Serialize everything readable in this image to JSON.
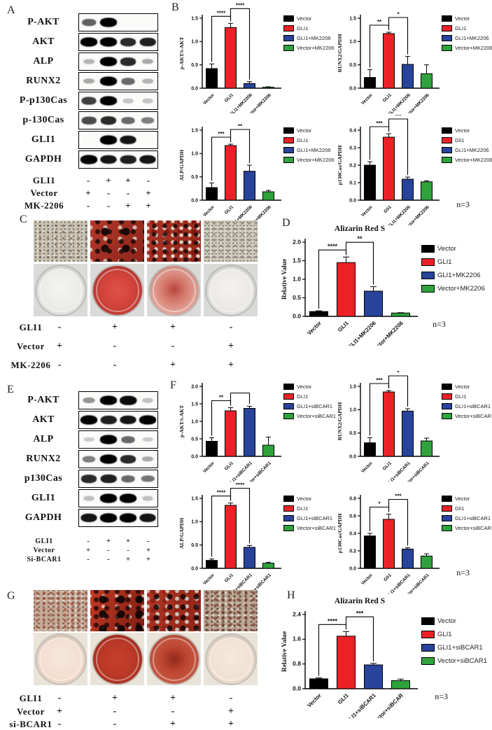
{
  "colors": {
    "bar_palette": [
      "#000000",
      "#EC2127",
      "#28439A",
      "#2FA23C"
    ],
    "axis": "#000000"
  },
  "panels": {
    "a": {
      "letter": "A",
      "blots": [
        {
          "label": "P-AKT",
          "bands": [
            0.55,
            1,
            0,
            0
          ]
        },
        {
          "label": "AKT",
          "bands": [
            1,
            1,
            0.8,
            0.85
          ]
        },
        {
          "label": "ALP",
          "bands": [
            0.15,
            1,
            0.8,
            0.2
          ]
        },
        {
          "label": "RUNX2",
          "bands": [
            0.2,
            1,
            0.5,
            0.15
          ]
        },
        {
          "label": "P-p130Cas",
          "bands": [
            0.7,
            1,
            0.08,
            0.08
          ]
        },
        {
          "label": "p-130Cas",
          "bands": [
            0.65,
            0.8,
            0.5,
            0.4
          ]
        },
        {
          "label": "GLI1",
          "bands": [
            0,
            1,
            0.9,
            0
          ]
        },
        {
          "label": "GAPDH",
          "bands": [
            1,
            0.9,
            0.85,
            0.9
          ]
        }
      ],
      "conditions": [
        {
          "label": "GLI1",
          "values": [
            "-",
            "+",
            "+",
            "-"
          ]
        },
        {
          "label": "Vector",
          "values": [
            "+",
            "-",
            "-",
            "+"
          ]
        },
        {
          "label": "MK-2206",
          "values": [
            "-",
            "-",
            "+",
            "+"
          ]
        }
      ]
    },
    "b": {
      "letter": "B"
    },
    "c": {
      "letter": "C",
      "conditions": [
        {
          "label": "GLI1",
          "values": [
            "-",
            "+",
            "+",
            "-"
          ]
        },
        {
          "label": "Vector",
          "values": [
            "+",
            "-",
            "-",
            "+"
          ]
        },
        {
          "label": "MK-2206",
          "values": [
            "-",
            "-",
            "+",
            "+"
          ]
        }
      ]
    },
    "d": {
      "letter": "D"
    },
    "e": {
      "letter": "E",
      "blots": [
        {
          "label": "P-AKT",
          "bands": [
            0.3,
            1,
            0.95,
            0.1
          ]
        },
        {
          "label": "AKT",
          "bands": [
            1,
            0.85,
            0.9,
            1
          ]
        },
        {
          "label": "ALP",
          "bands": [
            0.05,
            1,
            0.5,
            0.05
          ]
        },
        {
          "label": "RUNX2",
          "bands": [
            0.4,
            1,
            0.8,
            0.2
          ]
        },
        {
          "label": "p130Cas",
          "bands": [
            0.8,
            0.85,
            0.5,
            0.45
          ]
        },
        {
          "label": "GLI1",
          "bands": [
            0.1,
            1,
            1,
            0.1
          ]
        },
        {
          "label": "GAPDH",
          "bands": [
            0.9,
            1,
            1,
            0.9
          ]
        }
      ],
      "conditions": [
        {
          "label": "GLI1",
          "values": [
            "-",
            "+",
            "+",
            "-"
          ]
        },
        {
          "label": "Vector",
          "values": [
            "+",
            "-",
            "-",
            "+"
          ]
        },
        {
          "label": "Si-BCAR1",
          "values": [
            "-",
            "-",
            "+",
            "+"
          ]
        }
      ]
    },
    "f": {
      "letter": "F"
    },
    "g": {
      "letter": "G",
      "conditions": [
        {
          "label": "GLI1",
          "values": [
            "-",
            "+",
            "+",
            "-"
          ]
        },
        {
          "label": "Vector",
          "values": [
            "+",
            "-",
            "-",
            "+"
          ]
        },
        {
          "label": "si-BCAR1",
          "values": [
            "-",
            "-",
            "+",
            "+"
          ]
        }
      ]
    },
    "h": {
      "letter": "H"
    }
  },
  "chart_data": [
    {
      "id": "b1",
      "type": "bar",
      "size": "small",
      "ylabel": "p-AKT/t-AKT",
      "ylim": [
        0,
        1.5
      ],
      "yticks": [
        "0.0",
        "0.5",
        "1.0",
        "1.5"
      ],
      "categories": [
        "Vector",
        "GLI1",
        "GLI1+MK2206",
        "Vector+MK2206"
      ],
      "values": [
        0.42,
        1.3,
        0.1,
        0.02
      ],
      "errors": [
        0.1,
        0.09,
        0.04,
        0.01
      ],
      "significance": [
        {
          "from": 0,
          "to": 1,
          "label": "****"
        },
        {
          "from": 1,
          "to": 2,
          "label": "****"
        }
      ],
      "legend": [
        "Vector",
        "GLI1",
        "GLI1+MK2206",
        "Vector+MK2206"
      ],
      "legend_position": "right",
      "grid": false
    },
    {
      "id": "b2",
      "type": "bar",
      "size": "small",
      "ylabel": "RUNX2/GAPDH",
      "ylim": [
        0,
        1.5
      ],
      "yticks": [
        "0.0",
        "0.5",
        "1.0",
        "1.5"
      ],
      "categories": [
        "Vector",
        "GLI1",
        "GLI1+MK2206",
        "Vector+MK2206"
      ],
      "values": [
        0.23,
        1.17,
        0.51,
        0.31
      ],
      "errors": [
        0.17,
        0.03,
        0.17,
        0.19
      ],
      "significance": [
        {
          "from": 0,
          "to": 1,
          "label": "**"
        },
        {
          "from": 1,
          "to": 2,
          "label": "*"
        }
      ],
      "legend": [
        "Vector",
        "GLI1",
        "GLI1+MK2206",
        "Vector+MK2206"
      ],
      "legend_position": "right",
      "grid": false
    },
    {
      "id": "b3",
      "type": "bar",
      "size": "small",
      "ylabel": "ALP/GAPDH",
      "ylim": [
        0,
        1.5
      ],
      "yticks": [
        "0.0",
        "0.5",
        "1.0",
        "1.5"
      ],
      "categories": [
        "Vector",
        "GLI1",
        "GLI1+MK2206",
        "Vector+MK2206"
      ],
      "values": [
        0.27,
        1.17,
        0.62,
        0.18
      ],
      "errors": [
        0.1,
        0.03,
        0.13,
        0.03
      ],
      "significance": [
        {
          "from": 0,
          "to": 1,
          "label": "***"
        },
        {
          "from": 1,
          "to": 2,
          "label": "**"
        }
      ],
      "legend": [
        "Vector",
        "GLI1",
        "GLI1+MK2206",
        "Vector+MK2206"
      ],
      "legend_position": "right",
      "grid": false
    },
    {
      "id": "b4",
      "type": "bar",
      "size": "small",
      "ylabel": "p130Cas/GAPDH",
      "ylim": [
        0,
        0.4
      ],
      "yticks": [
        "0.0",
        "0.1",
        "0.2",
        "0.3",
        "0.4"
      ],
      "categories": [
        "Vector",
        "Gli1",
        "GLI1+MK2206",
        "Vector+MK2206"
      ],
      "values": [
        0.2,
        0.36,
        0.12,
        0.105
      ],
      "errors": [
        0.02,
        0.02,
        0.012,
        0.006
      ],
      "significance": [
        {
          "from": 0,
          "to": 1,
          "label": "***"
        },
        {
          "from": 1,
          "to": 2,
          "label": "***"
        }
      ],
      "legend": [
        "Vector",
        "Gli1",
        "GLI1+MK2206",
        "Vector+MK2206"
      ],
      "legend_position": "right",
      "grid": false,
      "n_label": "n=3"
    },
    {
      "id": "d",
      "type": "bar",
      "size": "large",
      "title": "Alizarin Red S",
      "ylabel": "Relative Value",
      "ylim": [
        0,
        2.0
      ],
      "yticks": [
        "0.0",
        "0.5",
        "1.0",
        "1.5",
        "2.0"
      ],
      "categories": [
        "Vector",
        "GLI1",
        "GLI1+MK2206",
        "Vector+MK2206"
      ],
      "values": [
        0.13,
        1.45,
        0.68,
        0.09
      ],
      "errors": [
        0.02,
        0.15,
        0.12,
        0.01
      ],
      "significance": [
        {
          "from": 0,
          "to": 1,
          "label": "****"
        },
        {
          "from": 1,
          "to": 2,
          "label": "**"
        }
      ],
      "legend": [
        "Vector",
        "GLI1",
        "GLI1+MK2206",
        "Vector+MK2206"
      ],
      "legend_position": "right",
      "grid": false,
      "n_label": "n=3"
    },
    {
      "id": "f1",
      "type": "bar",
      "size": "small",
      "ylabel": "p-AKT/t-AKT",
      "ylim": [
        0,
        2.0
      ],
      "yticks": [
        "0.0",
        "0.5",
        "1.0",
        "1.5",
        "2.0"
      ],
      "categories": [
        "Vector",
        "GLI1",
        "GLI1+siBCAR1",
        "Vector+siBCAR1"
      ],
      "values": [
        0.43,
        1.3,
        1.37,
        0.32
      ],
      "errors": [
        0.1,
        0.09,
        0.06,
        0.23
      ],
      "significance": [
        {
          "from": 0,
          "to": 1,
          "label": "**"
        },
        {
          "from": 1,
          "to": 2,
          "label": ""
        }
      ],
      "legend": [
        "Vector",
        "GLI1",
        "GLI1+siBCAR1",
        "Vector+siBCAR1"
      ],
      "legend_position": "right",
      "grid": false
    },
    {
      "id": "f2",
      "type": "bar",
      "size": "small",
      "ylabel": "RUNX2/GAPDH",
      "ylim": [
        0,
        1.5
      ],
      "yticks": [
        "0.0",
        "0.5",
        "1.0",
        "1.5"
      ],
      "categories": [
        "Vector",
        "GLI1",
        "GLI1+siBCAR1",
        "Vector+siBCAR1"
      ],
      "values": [
        0.29,
        1.38,
        0.97,
        0.33
      ],
      "errors": [
        0.11,
        0.03,
        0.05,
        0.06
      ],
      "significance": [
        {
          "from": 0,
          "to": 1,
          "label": "***"
        },
        {
          "from": 1,
          "to": 2,
          "label": "*"
        }
      ],
      "legend": [
        "Vector",
        "GLI1",
        "GLI1+siBCAR1",
        "Vector+siBCAR1"
      ],
      "legend_position": "right",
      "grid": false
    },
    {
      "id": "f3",
      "type": "bar",
      "size": "small",
      "ylabel": "ALP/GAPDH",
      "ylim": [
        0,
        1.5
      ],
      "yticks": [
        "0.0",
        "0.5",
        "1.0",
        "1.5"
      ],
      "categories": [
        "Vector",
        "GLI1",
        "GLI1+siBCAR1",
        "Vector+siBCAR1"
      ],
      "values": [
        0.17,
        1.35,
        0.45,
        0.11
      ],
      "errors": [
        0.03,
        0.05,
        0.04,
        0.02
      ],
      "significance": [
        {
          "from": 0,
          "to": 1,
          "label": "****"
        },
        {
          "from": 1,
          "to": 2,
          "label": "****"
        }
      ],
      "legend": [
        "Vector",
        "GLI1",
        "GLI1+siBCAR1",
        "Vector+siBCAR1"
      ],
      "legend_position": "right",
      "grid": false
    },
    {
      "id": "f4",
      "type": "bar",
      "size": "small",
      "ylabel": "p130Cas/GAPDH",
      "ylim": [
        0,
        0.8
      ],
      "yticks": [
        "0.0",
        "0.2",
        "0.4",
        "0.6",
        "0.8"
      ],
      "categories": [
        "Vector",
        "Gli1",
        "GLI1+siBCAR1",
        "Vector+siBCAR1"
      ],
      "values": [
        0.37,
        0.56,
        0.22,
        0.14
      ],
      "errors": [
        0.03,
        0.06,
        0.015,
        0.025
      ],
      "significance": [
        {
          "from": 0,
          "to": 1,
          "label": "*"
        },
        {
          "from": 1,
          "to": 2,
          "label": "***"
        }
      ],
      "legend": [
        "Vector",
        "Gli1",
        "GLI1+siBCAR1",
        "Vector+siBCAR1"
      ],
      "legend_position": "right",
      "grid": false,
      "n_label": "n=3"
    },
    {
      "id": "h",
      "type": "bar",
      "size": "large",
      "title": "Alizarin Red S",
      "ylabel": "Relative Value",
      "ylim": [
        0,
        2.4
      ],
      "yticks": [
        "0.0",
        "0.8",
        "1.6",
        "2.4"
      ],
      "categories": [
        "Vector",
        "GLI1",
        "GLI1+siBCAR1",
        "Vector+siBCAR"
      ],
      "values": [
        0.32,
        1.7,
        0.77,
        0.26
      ],
      "errors": [
        0.03,
        0.15,
        0.05,
        0.05
      ],
      "significance": [
        {
          "from": 0,
          "to": 1,
          "label": "****"
        },
        {
          "from": 1,
          "to": 2,
          "label": "***"
        }
      ],
      "legend": [
        "Vector",
        "GLI1",
        "GLI1+siBCAR1",
        "Vector+siBCAR1"
      ],
      "legend_position": "right",
      "grid": false,
      "n_label": "n=3"
    }
  ]
}
